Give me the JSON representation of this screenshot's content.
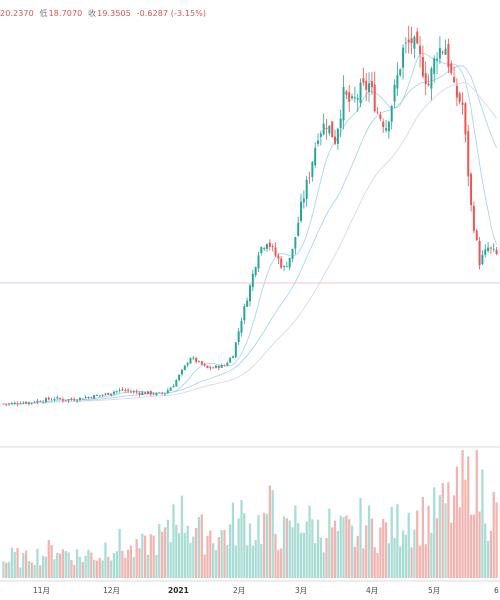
{
  "header": {
    "high_value": "20.2370",
    "low_label": "低",
    "low_value": "18.7070",
    "close_label": "收",
    "close_value": "19.3505",
    "change": "-0.6287 (-3.15%)"
  },
  "chart_data": {
    "type": "candlestick",
    "x_tick_labels": [
      "11月",
      "12月",
      "2021",
      "2月",
      "3月",
      "4月",
      "5月",
      "6"
    ],
    "grid": false,
    "colors": {
      "up": "#26a69a",
      "down": "#ef5350",
      "volume_up": "#a8dcd4",
      "volume_down": "#f2b4b1",
      "ma_fast": "#a9d6f0",
      "ma_slow": "#dcd6ec",
      "ref_line": "#f2b7b5"
    },
    "note": "approximate close prices traced from candles (2020-10 to 2021-06)",
    "closes": [
      0.6,
      0.6,
      0.7,
      0.7,
      0.8,
      0.9,
      1.0,
      0.9,
      0.9,
      1.0,
      1.1,
      1.2,
      1.3,
      1.5,
      1.6,
      1.5,
      1.4,
      1.4,
      1.3,
      1.4,
      2.0,
      3.0,
      4.0,
      3.6,
      3.2,
      3.3,
      3.4,
      4.2,
      6.8,
      9.2,
      11.8,
      12.6,
      11.5,
      10.5,
      11.8,
      15.0,
      17.5,
      20.5,
      21.2,
      20.0,
      23.2,
      22.5,
      23.5,
      24.0,
      22.0,
      21.0,
      23.5,
      26.5,
      27.2,
      25.8,
      24.0,
      26.5,
      26.8,
      23.5,
      22.5,
      15.0,
      11.0,
      12.0,
      11.5
    ],
    "volumes": [
      22,
      28,
      25,
      32,
      30,
      35,
      40,
      34,
      30,
      28,
      32,
      30,
      42,
      45,
      38,
      35,
      40,
      48,
      52,
      55,
      95,
      80,
      65,
      58,
      60,
      55,
      62,
      70,
      78,
      65,
      70,
      85,
      62,
      58,
      75,
      80,
      70,
      62,
      68,
      58,
      60,
      55,
      72,
      68,
      62,
      65,
      70,
      85,
      75,
      78,
      82,
      90,
      95,
      100,
      120,
      150,
      115,
      90,
      80
    ]
  }
}
